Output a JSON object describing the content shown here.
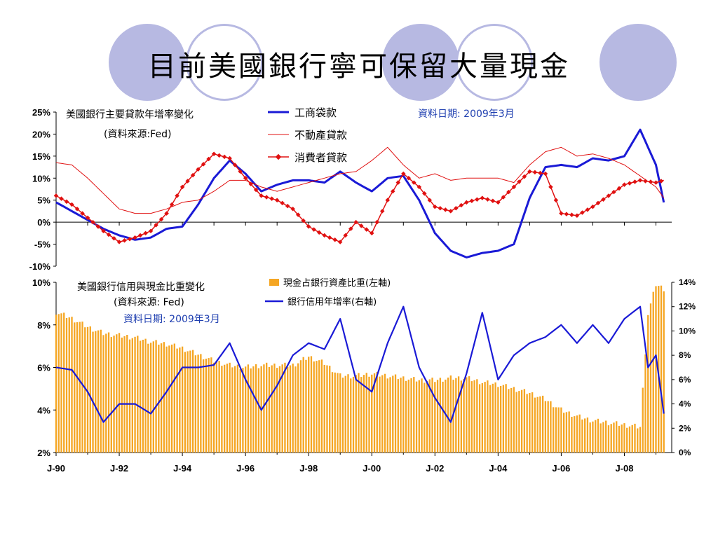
{
  "slide": {
    "title": "目前美國銀行寧可保留大量現金",
    "accent_colors": {
      "circle_fill": "#b7b9e2",
      "line_blue": "#1a1ad6",
      "line_red": "#e01010",
      "bar_orange": "#f5a623"
    }
  },
  "chart_data": [
    {
      "type": "line",
      "title": "美國銀行主要貸款年增率變化",
      "subtitle": "(資料來源:Fed)",
      "date_note": "資料日期: 2009年3月",
      "ylim": [
        -10,
        25
      ],
      "yticks": [
        "25%",
        "20%",
        "15%",
        "10%",
        "5%",
        "0%",
        "-5%",
        "-10%"
      ],
      "xlim": [
        1990.0,
        2009.5
      ],
      "grid": false,
      "legend_position": "top-center",
      "series": [
        {
          "name": "工商袋款",
          "color": "#1a1ad6",
          "style": "thick",
          "x": [
            1990.0,
            1990.5,
            1991.0,
            1991.5,
            1992.0,
            1992.5,
            1993.0,
            1993.5,
            1994.0,
            1994.5,
            1995.0,
            1995.5,
            1996.0,
            1996.5,
            1997.0,
            1997.5,
            1998.0,
            1998.5,
            1999.0,
            1999.5,
            2000.0,
            2000.5,
            2001.0,
            2001.5,
            2002.0,
            2002.5,
            2003.0,
            2003.5,
            2004.0,
            2004.5,
            2005.0,
            2005.5,
            2006.0,
            2006.5,
            2007.0,
            2007.5,
            2008.0,
            2008.5,
            2009.0,
            2009.25
          ],
          "y": [
            4.5,
            2.5,
            0.5,
            -1.5,
            -3.0,
            -4.0,
            -3.5,
            -1.5,
            -1.0,
            4.0,
            10.0,
            14.0,
            11.0,
            7.0,
            8.5,
            9.5,
            9.5,
            9.0,
            11.5,
            9.0,
            7.0,
            10.0,
            10.5,
            5.0,
            -2.5,
            -6.5,
            -8.0,
            -7.0,
            -6.5,
            -5.0,
            5.5,
            12.5,
            13.0,
            12.5,
            14.5,
            14.0,
            15.0,
            21.0,
            13.0,
            4.5
          ]
        },
        {
          "name": "不動產貸款",
          "color": "#e01010",
          "style": "thin",
          "x": [
            1990.0,
            1990.5,
            1991.0,
            1991.5,
            1992.0,
            1992.5,
            1993.0,
            1993.5,
            1994.0,
            1994.5,
            1995.0,
            1995.5,
            1996.0,
            1996.5,
            1997.0,
            1997.5,
            1998.0,
            1998.5,
            1999.0,
            1999.5,
            2000.0,
            2000.5,
            2001.0,
            2001.5,
            2002.0,
            2002.5,
            2003.0,
            2003.5,
            2004.0,
            2004.5,
            2005.0,
            2005.5,
            2006.0,
            2006.5,
            2007.0,
            2007.5,
            2008.0,
            2008.5,
            2009.0,
            2009.25
          ],
          "y": [
            13.5,
            13.0,
            10.0,
            6.5,
            3.0,
            2.0,
            2.0,
            3.0,
            4.5,
            5.0,
            7.0,
            9.5,
            9.5,
            8.0,
            7.0,
            8.0,
            9.0,
            10.0,
            11.0,
            11.5,
            14.0,
            17.0,
            13.0,
            10.0,
            11.0,
            9.5,
            10.0,
            10.0,
            10.0,
            9.0,
            13.0,
            16.0,
            17.0,
            15.0,
            15.5,
            14.5,
            13.0,
            10.5,
            8.0,
            5.5
          ]
        },
        {
          "name": "消費者貸款",
          "color": "#e01010",
          "style": "markers",
          "x": [
            1990.0,
            1990.5,
            1991.0,
            1991.5,
            1992.0,
            1992.5,
            1993.0,
            1993.5,
            1994.0,
            1994.5,
            1995.0,
            1995.5,
            1996.0,
            1996.5,
            1997.0,
            1997.5,
            1998.0,
            1998.5,
            1999.0,
            1999.5,
            2000.0,
            2000.5,
            2001.0,
            2001.5,
            2002.0,
            2002.5,
            2003.0,
            2003.5,
            2004.0,
            2004.5,
            2005.0,
            2005.5,
            2006.0,
            2006.5,
            2007.0,
            2007.5,
            2008.0,
            2008.5,
            2009.0,
            2009.25
          ],
          "y": [
            6.0,
            4.0,
            1.0,
            -2.0,
            -4.5,
            -3.5,
            -2.0,
            2.0,
            8.0,
            12.0,
            15.5,
            14.5,
            10.0,
            6.0,
            5.0,
            3.0,
            -1.0,
            -3.0,
            -4.5,
            0.0,
            -2.5,
            5.0,
            11.0,
            8.0,
            3.5,
            2.5,
            4.5,
            5.5,
            4.5,
            8.0,
            11.5,
            11.0,
            2.0,
            1.5,
            3.5,
            6.0,
            8.5,
            9.5,
            9.0,
            9.5
          ]
        }
      ]
    },
    {
      "type": "bar+line",
      "title": "美國銀行信用與現金比重變化",
      "subtitle": "(資料來源: Fed)",
      "date_note": "資料日期: 2009年3月",
      "y_left_lim": [
        2,
        10
      ],
      "y_left_ticks": [
        "10%",
        "8%",
        "6%",
        "4%",
        "2%"
      ],
      "y_right_lim": [
        0,
        14
      ],
      "y_right_ticks": [
        "14%",
        "12%",
        "10%",
        "8%",
        "6%",
        "4%",
        "2%",
        "0%"
      ],
      "xlim": [
        1990.0,
        2009.5
      ],
      "x_tick_labels": [
        "J-90",
        "J-92",
        "J-94",
        "J-96",
        "J-98",
        "J-00",
        "J-02",
        "J-04",
        "J-06",
        "J-08"
      ],
      "grid": false,
      "legend_position": "top-center",
      "bars": {
        "name": "現金占銀行資產比重(左軸)",
        "axis": "left",
        "color": "#f5a623",
        "x": [
          1990.0,
          1990.5,
          1991.0,
          1991.5,
          1992.0,
          1992.5,
          1993.0,
          1993.5,
          1994.0,
          1994.5,
          1995.0,
          1995.5,
          1996.0,
          1996.5,
          1997.0,
          1997.5,
          1998.0,
          1998.5,
          1999.0,
          1999.5,
          2000.0,
          2000.5,
          2001.0,
          2001.5,
          2002.0,
          2002.5,
          2003.0,
          2003.5,
          2004.0,
          2004.5,
          2005.0,
          2005.5,
          2006.0,
          2006.5,
          2007.0,
          2007.5,
          2008.0,
          2008.5,
          2008.75,
          2009.0,
          2009.25
        ],
        "y": [
          8.6,
          8.3,
          7.9,
          7.6,
          7.5,
          7.4,
          7.2,
          7.1,
          6.9,
          6.6,
          6.3,
          6.1,
          6.0,
          6.1,
          6.1,
          6.1,
          6.5,
          6.2,
          5.6,
          5.6,
          5.7,
          5.6,
          5.5,
          5.4,
          5.4,
          5.5,
          5.5,
          5.3,
          5.2,
          5.0,
          4.8,
          4.5,
          4.0,
          3.7,
          3.5,
          3.4,
          3.3,
          3.2,
          8.5,
          9.9,
          9.7
        ]
      },
      "series": [
        {
          "name": "銀行信用年增率(右軸)",
          "axis": "right",
          "color": "#1a1ad6",
          "x": [
            1990.0,
            1990.5,
            1991.0,
            1991.5,
            1992.0,
            1992.5,
            1993.0,
            1993.5,
            1994.0,
            1994.5,
            1995.0,
            1995.5,
            1996.0,
            1996.5,
            1997.0,
            1997.5,
            1998.0,
            1998.5,
            1999.0,
            1999.5,
            2000.0,
            2000.5,
            2001.0,
            2001.5,
            2002.0,
            2002.5,
            2003.0,
            2003.5,
            2004.0,
            2004.5,
            2005.0,
            2005.5,
            2006.0,
            2006.5,
            2007.0,
            2007.5,
            2008.0,
            2008.5,
            2008.75,
            2009.0,
            2009.25
          ],
          "y": [
            7.0,
            6.8,
            5.0,
            2.5,
            4.0,
            4.0,
            3.2,
            5.0,
            7.0,
            7.0,
            7.2,
            9.0,
            6.0,
            3.5,
            5.5,
            8.0,
            9.0,
            8.5,
            11.0,
            6.0,
            5.0,
            9.0,
            12.0,
            7.0,
            4.5,
            2.5,
            6.5,
            11.5,
            6.0,
            8.0,
            9.0,
            9.5,
            10.5,
            9.0,
            10.5,
            9.0,
            11.0,
            12.0,
            7.0,
            8.0,
            3.2
          ]
        }
      ]
    }
  ]
}
